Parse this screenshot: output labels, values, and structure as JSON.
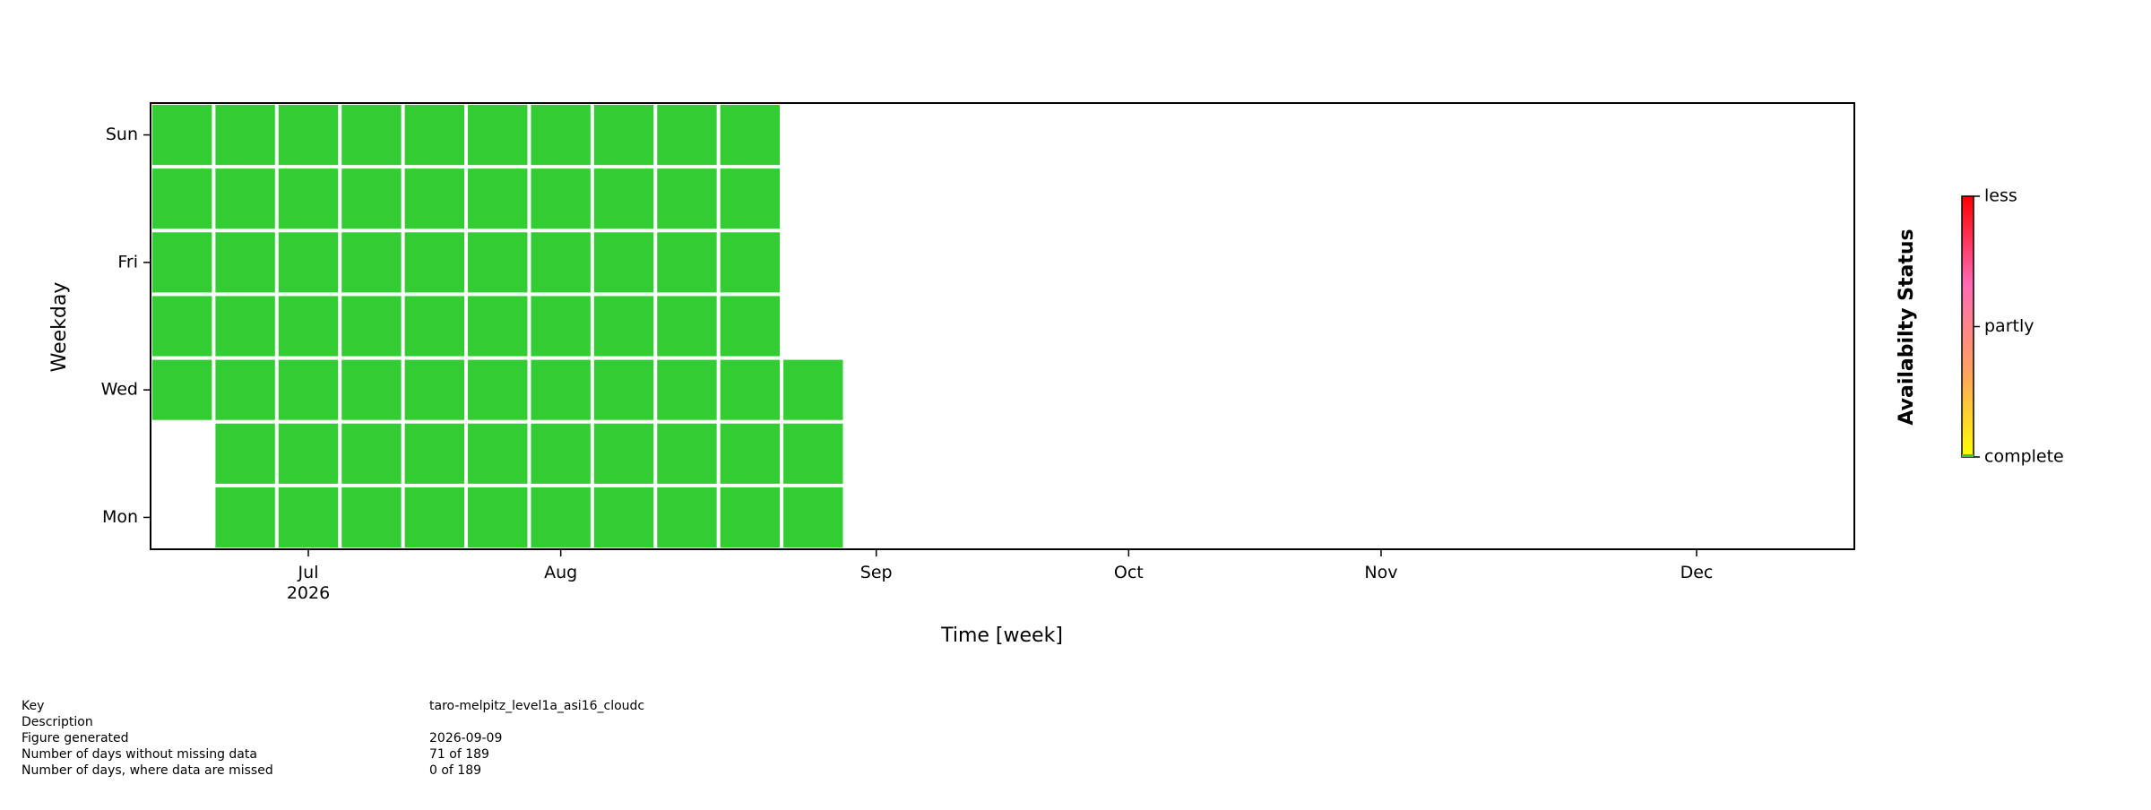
{
  "chart_data": {
    "type": "calendar-heatmap",
    "x_label": "Time [week]",
    "y_label": "Weekday",
    "colorbar_label": "Availabilty Status",
    "y_categories": [
      "Mon",
      null,
      "Wed",
      null,
      "Fri",
      null,
      "Sun"
    ],
    "xlim": [
      -0.5,
      26.5
    ],
    "xticks": [
      {
        "value": 2,
        "label": "Jul\n2026"
      },
      {
        "value": 6,
        "label": "Aug"
      },
      {
        "value": 11,
        "label": "Sep"
      },
      {
        "value": 15,
        "label": "Oct"
      },
      {
        "value": 19,
        "label": "Nov"
      },
      {
        "value": 24,
        "label": "Dec"
      }
    ],
    "z": [
      [
        null,
        0,
        0,
        0,
        0,
        0,
        0,
        0,
        0,
        0,
        0
      ],
      [
        null,
        0,
        0,
        0,
        0,
        0,
        0,
        0,
        0,
        0,
        0
      ],
      [
        0,
        0,
        0,
        0,
        0,
        0,
        0,
        0,
        0,
        0,
        0
      ],
      [
        0,
        0,
        0,
        0,
        0,
        0,
        0,
        0,
        0,
        0,
        null
      ],
      [
        0,
        0,
        0,
        0,
        0,
        0,
        0,
        0,
        0,
        0,
        null
      ],
      [
        0,
        0,
        0,
        0,
        0,
        0,
        0,
        0,
        0,
        0,
        null
      ],
      [
        0,
        0,
        0,
        0,
        0,
        0,
        0,
        0,
        0,
        0,
        null
      ]
    ],
    "complete_color": "#33cc33",
    "colorscale": [
      "#ffff00",
      "#ffa060",
      "#ff69b4",
      "#ff0000"
    ],
    "clim": [
      0,
      2
    ],
    "cticks": [
      {
        "value": 0,
        "label": "complete"
      },
      {
        "value": 1,
        "label": "partly"
      },
      {
        "value": 2,
        "label": "less"
      }
    ]
  },
  "info": [
    {
      "label": "Key",
      "value": "taro-melpitz_level1a_asi16_cloudc"
    },
    {
      "label": "Description"
    },
    {
      "label": "Figure generated",
      "value": "2026-09-09"
    },
    {
      "label": "Number of days without missing data",
      "value": "71 of 189"
    },
    {
      "label": "Number of days, where data are missed",
      "value": "0 of 189"
    }
  ]
}
